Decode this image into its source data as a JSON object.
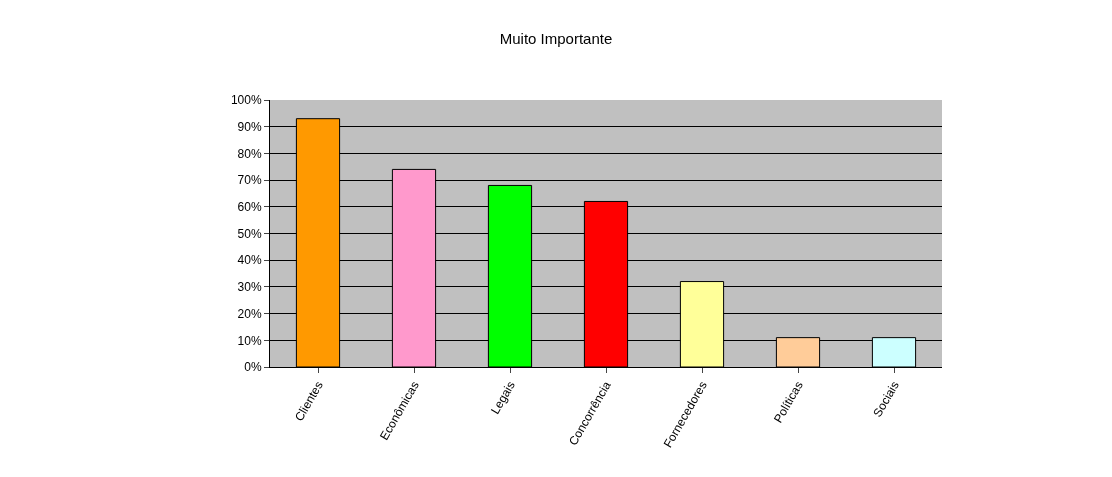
{
  "chart_data": {
    "type": "bar",
    "title": "Muito Importante",
    "categories": [
      "Clientes",
      "Econômicas",
      "Legais",
      "Concorrência",
      "Fornecedores",
      "Políticas",
      "Sociais"
    ],
    "values": [
      93,
      74,
      68,
      62,
      32,
      11,
      11
    ],
    "colors": [
      "#ff9900",
      "#ff99cc",
      "#00ff00",
      "#ff0000",
      "#ffff99",
      "#ffcc99",
      "#ccffff"
    ],
    "ylim": [
      0,
      100
    ],
    "yticks": [
      {
        "value": 0,
        "label": "0%"
      },
      {
        "value": 10,
        "label": "10%"
      },
      {
        "value": 20,
        "label": "20%"
      },
      {
        "value": 30,
        "label": "30%"
      },
      {
        "value": 40,
        "label": "40%"
      },
      {
        "value": 50,
        "label": "50%"
      },
      {
        "value": 60,
        "label": "60%"
      },
      {
        "value": 70,
        "label": "70%"
      },
      {
        "value": 80,
        "label": "80%"
      },
      {
        "value": 90,
        "label": "90%"
      },
      {
        "value": 100,
        "label": "100%"
      }
    ],
    "grid": "y"
  }
}
